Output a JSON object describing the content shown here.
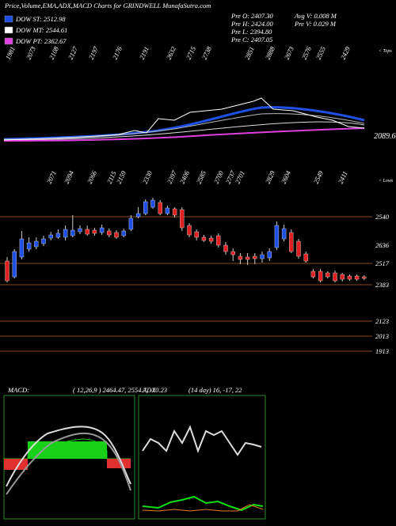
{
  "header": {
    "title": "Price,Volume,EMA,ADX,MACD Charts for GRINDWELL  MunafaSutra.com",
    "legend": [
      {
        "text": "DOW ST: 2512.98",
        "color": "#1e50e6"
      },
      {
        "text": "DOW MT: 2544.61",
        "color": "#ffffff"
      },
      {
        "text": "DOW PT: 2362.67",
        "color": "#e040e0"
      }
    ],
    "prev": [
      "Pre O: 2407.30",
      "Pre H: 2424.00",
      "Pre L: 2394.80",
      "Pre C: 2407.05"
    ],
    "volume": [
      "Avg V: 0.008 M",
      "Pre V: 0.029 M"
    ]
  },
  "tops": {
    "label": "< Tops",
    "values": [
      1981,
      2073,
      2108,
      2127,
      2197,
      2176,
      2191,
      2632,
      2715,
      2738,
      2851,
      2888,
      2673,
      2576,
      2555,
      2429
    ]
  },
  "ema_label": "2089.60",
  "lows": {
    "label": "< Lows",
    "values": [
      2071,
      2094,
      2066,
      2115,
      2159,
      2330,
      2397,
      2406,
      2585,
      2700,
      2737,
      2701,
      2829,
      2604,
      2549,
      2411
    ]
  },
  "levels": [
    2540,
    2636,
    2517,
    2383,
    2123,
    2013,
    1913
  ],
  "chart_data": {
    "type": "candlestick",
    "up_color": "#1e50e6",
    "down_color": "#e02020",
    "ylim": [
      2360,
      2600
    ],
    "open": [
      2430,
      2390,
      2440,
      2460,
      2466,
      2474,
      2488,
      2490,
      2490,
      2494,
      2504,
      2510,
      2508,
      2502,
      2506,
      2502,
      2494,
      2510,
      2542,
      2550,
      2566,
      2578,
      2550,
      2562,
      2560,
      2520,
      2504,
      2490,
      2488,
      2494,
      2470,
      2454,
      2442,
      2440,
      2442,
      2436,
      2438,
      2464,
      2486,
      2502,
      2480,
      2448,
      2404,
      2404,
      2400,
      2400,
      2396,
      2392,
      2392,
      2390
    ],
    "high": [
      2440,
      2460,
      2506,
      2490,
      2490,
      2494,
      2504,
      2510,
      2520,
      2546,
      2520,
      2520,
      2514,
      2522,
      2512,
      2508,
      2512,
      2546,
      2566,
      2586,
      2590,
      2584,
      2570,
      2566,
      2566,
      2526,
      2510,
      2496,
      2494,
      2500,
      2478,
      2462,
      2450,
      2450,
      2450,
      2454,
      2462,
      2530,
      2522,
      2510,
      2486,
      2454,
      2410,
      2410,
      2404,
      2406,
      2400,
      2396,
      2396,
      2394
    ],
    "low": [
      2376,
      2386,
      2434,
      2454,
      2460,
      2468,
      2482,
      2486,
      2482,
      2490,
      2498,
      2494,
      2494,
      2496,
      2490,
      2486,
      2490,
      2506,
      2538,
      2546,
      2562,
      2546,
      2546,
      2540,
      2506,
      2490,
      2482,
      2478,
      2474,
      2464,
      2446,
      2430,
      2422,
      2420,
      2422,
      2426,
      2430,
      2458,
      2480,
      2450,
      2436,
      2426,
      2386,
      2376,
      2386,
      2376,
      2378,
      2380,
      2380,
      2382
    ],
    "close": [
      2380,
      2454,
      2486,
      2476,
      2480,
      2486,
      2496,
      2500,
      2510,
      2508,
      2512,
      2498,
      2500,
      2514,
      2496,
      2490,
      2506,
      2538,
      2550,
      2580,
      2584,
      2550,
      2564,
      2546,
      2514,
      2496,
      2490,
      2482,
      2480,
      2470,
      2454,
      2446,
      2434,
      2434,
      2436,
      2446,
      2454,
      2520,
      2512,
      2454,
      2442,
      2430,
      2390,
      2380,
      2390,
      2380,
      2384,
      2384,
      2384,
      2386
    ]
  },
  "macd": {
    "label": "MACD:",
    "values": "( 12,26,9 ) 2464.47, 2554.7, -70.23"
  },
  "adx": {
    "label": "ADX",
    "values": "(14 day) 16, -17, 22"
  }
}
